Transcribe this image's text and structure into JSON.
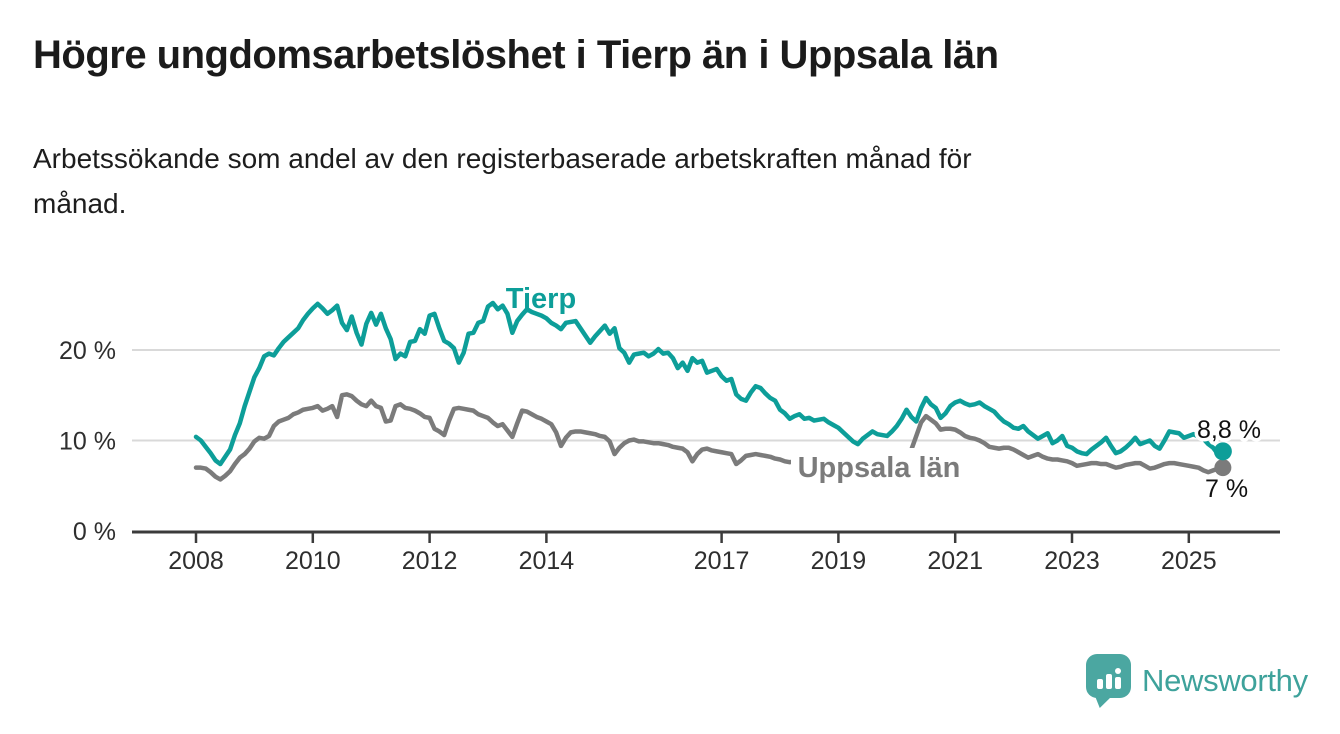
{
  "header": {
    "title": "Högre ungdomsarbetslöshet i Tierp än i Uppsala län",
    "subtitle_lines": [
      "Arbetssökande som andel av den registerbaserade arbetskraften månad för",
      "månad."
    ]
  },
  "branding": {
    "name": "Newsworthy",
    "icon": "newsworthy-bar-chart-bubble-icon",
    "icon_color": "#4BA7A1",
    "text_color": "#3EA29B"
  },
  "chart_data": {
    "type": "line",
    "title": "Högre ungdomsarbetslöshet i Tierp än i Uppsala län",
    "unit": "%",
    "x_start_year": 2008,
    "x_step_months": 1,
    "x_axis": {
      "tick_years": [
        2008,
        2010,
        2012,
        2014,
        2017,
        2019,
        2021,
        2023,
        2025
      ]
    },
    "y_axis": {
      "tick_values": [
        0,
        10,
        20
      ],
      "tick_labels": [
        "0 %",
        "10 %",
        "20 %"
      ],
      "gridline_values": [
        10,
        20
      ],
      "range": [
        0,
        26.5
      ]
    },
    "legend": "inline-labels",
    "colors": {
      "axis": "#3b3b3b",
      "grid": "#d9d9d9",
      "tick_text": "#2e2e2e",
      "value_label_text": "#111111"
    },
    "series": [
      {
        "name": "Tierp",
        "color": "#0D9E99",
        "end_value": 8.8,
        "end_value_label": "8,8 %",
        "values": [
          10.4,
          10.0,
          9.3,
          8.6,
          7.8,
          7.4,
          8.2,
          9.0,
          10.6,
          11.9,
          13.8,
          15.4,
          17.0,
          18.0,
          19.3,
          19.6,
          19.4,
          20.2,
          20.9,
          21.4,
          21.9,
          22.4,
          23.3,
          24.0,
          24.6,
          25.1,
          24.6,
          24.0,
          24.4,
          24.9,
          23.0,
          22.2,
          23.7,
          21.9,
          20.6,
          22.9,
          24.1,
          22.8,
          24.0,
          22.4,
          21.2,
          19.0,
          19.6,
          19.3,
          20.9,
          21.0,
          22.3,
          21.8,
          23.8,
          24.0,
          22.4,
          21.0,
          20.7,
          20.2,
          18.6,
          19.7,
          21.8,
          21.9,
          23.0,
          23.2,
          24.8,
          25.2,
          24.5,
          24.9,
          24.0,
          21.9,
          23.2,
          23.9,
          24.5,
          24.2,
          24.0,
          23.8,
          23.5,
          23.0,
          22.7,
          22.3,
          23.0,
          23.1,
          23.2,
          22.4,
          21.6,
          20.8,
          21.5,
          22.1,
          22.7,
          21.8,
          22.4,
          20.2,
          19.7,
          18.6,
          19.5,
          19.6,
          19.7,
          19.3,
          19.6,
          20.1,
          19.6,
          19.7,
          19.1,
          18.0,
          18.6,
          17.7,
          19.1,
          18.6,
          18.8,
          17.5,
          17.7,
          17.9,
          17.1,
          16.6,
          16.8,
          15.1,
          14.6,
          14.4,
          15.3,
          16.0,
          15.8,
          15.2,
          14.7,
          14.4,
          13.4,
          13.0,
          12.4,
          12.7,
          12.9,
          12.4,
          12.5,
          12.2,
          12.3,
          12.4,
          12.0,
          11.7,
          11.4,
          10.9,
          10.4,
          9.9,
          9.6,
          10.2,
          10.6,
          11.0,
          10.7,
          10.6,
          10.5,
          11.0,
          11.6,
          12.4,
          13.4,
          12.6,
          12.1,
          13.6,
          14.7,
          14.0,
          13.6,
          12.5,
          13.0,
          13.8,
          14.2,
          14.4,
          14.1,
          13.9,
          14.0,
          14.2,
          13.8,
          13.5,
          13.2,
          12.6,
          12.1,
          11.8,
          11.4,
          11.3,
          11.6,
          11.0,
          10.6,
          10.2,
          10.5,
          10.8,
          9.7,
          10.0,
          10.5,
          9.4,
          9.2,
          8.8,
          8.6,
          8.5,
          9.0,
          9.4,
          9.8,
          10.3,
          9.4,
          8.6,
          8.8,
          9.2,
          9.7,
          10.3,
          9.6,
          9.8,
          10.0,
          9.4,
          9.1,
          10.0,
          11.0,
          10.9,
          10.8,
          10.3,
          10.5,
          10.7,
          10.4,
          10.2,
          9.6,
          9.2,
          8.5,
          8.8
        ]
      },
      {
        "name": "Uppsala län",
        "color": "#7B7B7B",
        "end_value": 7.0,
        "end_value_label": "7 %",
        "values": [
          7.0,
          7.0,
          6.9,
          6.5,
          6.0,
          5.7,
          6.1,
          6.6,
          7.4,
          8.1,
          8.5,
          9.1,
          9.9,
          10.3,
          10.2,
          10.5,
          11.6,
          12.1,
          12.3,
          12.5,
          12.9,
          13.1,
          13.4,
          13.5,
          13.6,
          13.8,
          13.3,
          13.5,
          13.8,
          12.6,
          15.0,
          15.1,
          14.9,
          14.4,
          14.0,
          13.8,
          14.4,
          13.8,
          13.6,
          12.1,
          12.2,
          13.8,
          14.0,
          13.6,
          13.5,
          13.3,
          13.0,
          12.6,
          12.5,
          11.3,
          11.0,
          10.6,
          12.2,
          13.5,
          13.6,
          13.5,
          13.4,
          13.3,
          12.9,
          12.7,
          12.5,
          12.0,
          11.6,
          11.8,
          11.1,
          10.4,
          11.9,
          13.3,
          13.2,
          12.9,
          12.6,
          12.4,
          12.1,
          11.8,
          10.9,
          9.4,
          10.3,
          10.9,
          11.0,
          11.0,
          10.9,
          10.8,
          10.7,
          10.5,
          10.4,
          9.9,
          8.5,
          9.2,
          9.7,
          10.0,
          10.1,
          9.9,
          9.9,
          9.8,
          9.7,
          9.7,
          9.6,
          9.5,
          9.3,
          9.2,
          9.1,
          8.7,
          7.7,
          8.5,
          9.0,
          9.1,
          8.9,
          8.8,
          8.7,
          8.6,
          8.5,
          7.4,
          7.8,
          8.3,
          8.4,
          8.5,
          8.4,
          8.3,
          8.2,
          8.0,
          7.9,
          7.7,
          7.6,
          7.7,
          7.9,
          8.1,
          8.3,
          8.4,
          8.5,
          8.6,
          8.5,
          8.4,
          8.3,
          8.2,
          8.1,
          8.0,
          7.9,
          8.0,
          8.1,
          8.2,
          8.1,
          8.0,
          8.0,
          8.1,
          8.2,
          8.4,
          8.7,
          9.0,
          10.5,
          12.0,
          12.7,
          12.3,
          11.9,
          11.2,
          11.3,
          11.3,
          11.2,
          10.9,
          10.5,
          10.3,
          10.2,
          10.0,
          9.7,
          9.3,
          9.2,
          9.1,
          9.2,
          9.2,
          9.0,
          8.7,
          8.4,
          8.1,
          8.3,
          8.5,
          8.2,
          8.0,
          7.9,
          7.9,
          7.8,
          7.7,
          7.5,
          7.2,
          7.3,
          7.4,
          7.5,
          7.5,
          7.4,
          7.4,
          7.2,
          7.0,
          7.1,
          7.3,
          7.4,
          7.5,
          7.5,
          7.2,
          6.9,
          7.0,
          7.2,
          7.4,
          7.5,
          7.5,
          7.4,
          7.3,
          7.2,
          7.1,
          7.0,
          6.7,
          6.5,
          6.7,
          6.9,
          7.0
        ]
      }
    ]
  }
}
